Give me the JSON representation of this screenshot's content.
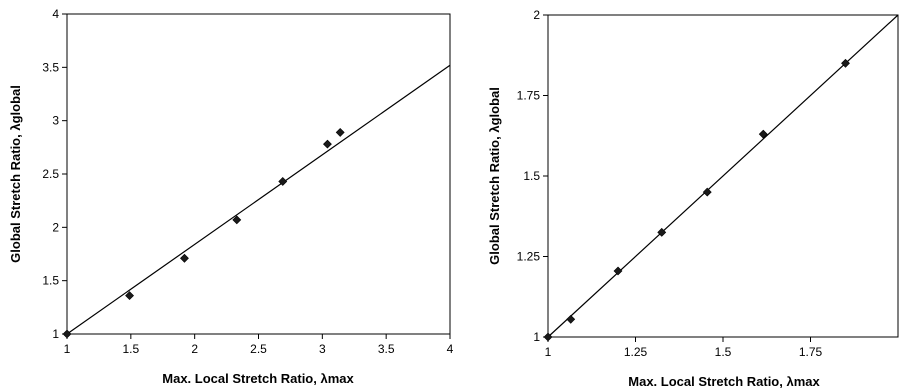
{
  "chart_data": [
    {
      "type": "scatter",
      "xlabel": "Max. Local Stretch Ratio, λmax",
      "ylabel": "Global Stretch Ratio, λglobal",
      "xlim": [
        1,
        4
      ],
      "ylim": [
        1,
        4
      ],
      "x_ticks": [
        "1",
        "1.5",
        "2",
        "2.5",
        "3",
        "3.5",
        "4"
      ],
      "y_ticks": [
        "1",
        "1.5",
        "2",
        "2.5",
        "3",
        "3.5",
        "4"
      ],
      "grid": false,
      "series": [
        {
          "marker": "diamond",
          "points": [
            {
              "x": 1.0,
              "y": 1.0
            },
            {
              "x": 1.49,
              "y": 1.36
            },
            {
              "x": 1.92,
              "y": 1.71
            },
            {
              "x": 2.33,
              "y": 2.07
            },
            {
              "x": 2.69,
              "y": 2.43
            },
            {
              "x": 3.04,
              "y": 2.78
            },
            {
              "x": 3.14,
              "y": 2.89
            }
          ]
        }
      ],
      "fit_line": {
        "x": [
          1.0,
          4.0
        ],
        "y": [
          1.0,
          3.52
        ]
      }
    },
    {
      "type": "scatter",
      "xlabel": "Max. Local Stretch Ratio, λmax",
      "ylabel": "Global Stretch Ratio, λglobal",
      "xlim": [
        1,
        2
      ],
      "ylim": [
        1,
        2
      ],
      "x_ticks": [
        "1",
        "1.25",
        "1.5",
        "1.75"
      ],
      "y_ticks": [
        "1",
        "1.25",
        "1.5",
        "1.75",
        "2"
      ],
      "grid": false,
      "series": [
        {
          "marker": "diamond",
          "points": [
            {
              "x": 1.0,
              "y": 1.0
            },
            {
              "x": 1.065,
              "y": 1.055
            },
            {
              "x": 1.2,
              "y": 1.205
            },
            {
              "x": 1.325,
              "y": 1.325
            },
            {
              "x": 1.455,
              "y": 1.45
            },
            {
              "x": 1.615,
              "y": 1.63
            },
            {
              "x": 1.85,
              "y": 1.85
            }
          ]
        }
      ],
      "fit_line": {
        "x": [
          1.0,
          2.0
        ],
        "y": [
          1.0,
          2.0
        ]
      }
    }
  ]
}
